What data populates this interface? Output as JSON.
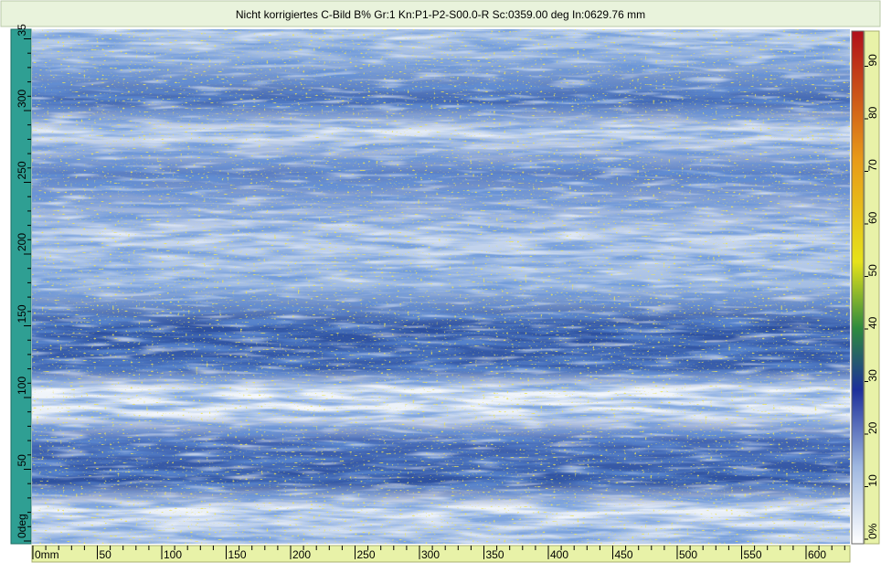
{
  "title": "Nicht korrigiertes C-Bild B% Gr:1 Kn:P1-P2-S00.0-R Sc:0359.00 deg In:0629.76 mm",
  "left_ruler": {
    "labels": [
      "0deg",
      "50",
      "100",
      "150",
      "200",
      "250",
      "300",
      "35"
    ]
  },
  "bottom_ruler": {
    "labels": [
      "0mm",
      "50",
      "100",
      "150",
      "200",
      "250",
      "300",
      "350",
      "400",
      "450",
      "500",
      "550",
      "600"
    ]
  },
  "color_scale": {
    "labels": [
      "0%",
      "10",
      "20",
      "30",
      "40",
      "50",
      "60",
      "70",
      "80",
      "90"
    ]
  }
}
